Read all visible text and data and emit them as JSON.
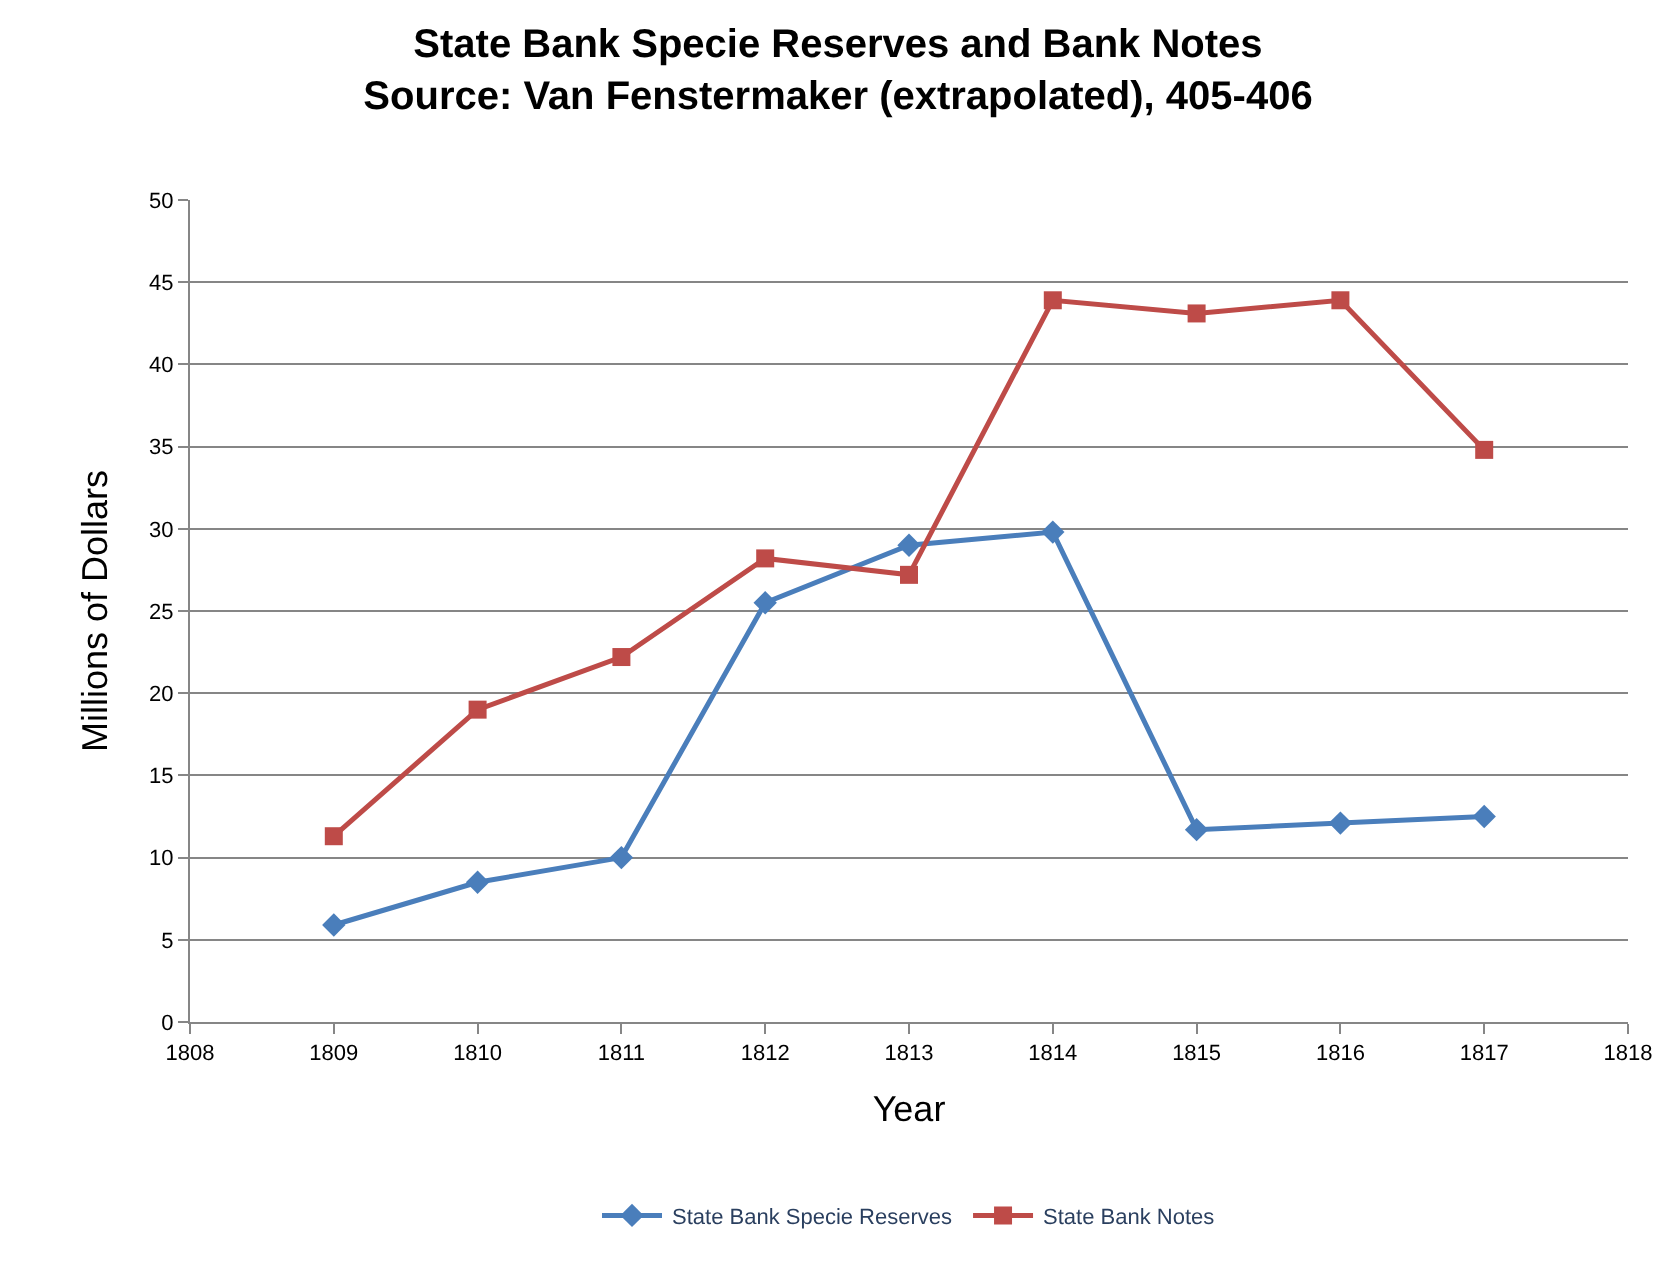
{
  "chart_data": {
    "type": "line",
    "title": "State Bank Specie Reserves and Bank Notes\nSource: Van Fenstermaker (extrapolated), 405-406",
    "xlabel": "Year",
    "ylabel": "Millions of Dollars",
    "x": [
      1809,
      1810,
      1811,
      1812,
      1813,
      1814,
      1815,
      1816,
      1817
    ],
    "series": [
      {
        "name": "State Bank Specie Reserves",
        "color": "#4a7ebb",
        "marker": "diamond",
        "values": [
          5.9,
          8.5,
          10,
          25.5,
          29,
          29.8,
          11.7,
          12.1,
          12.5
        ]
      },
      {
        "name": "State Bank Notes",
        "color": "#be4b48",
        "marker": "square",
        "values": [
          11.3,
          19,
          22.2,
          28.2,
          27.2,
          43.9,
          43.1,
          43.9,
          34.8
        ]
      }
    ],
    "xlim": [
      1808,
      1818
    ],
    "xticks": [
      1808,
      1809,
      1810,
      1811,
      1812,
      1813,
      1814,
      1815,
      1816,
      1817,
      1818
    ],
    "ylim": [
      0,
      50
    ],
    "yticks": [
      0,
      5,
      10,
      15,
      20,
      25,
      30,
      35,
      40,
      45,
      50
    ],
    "grid": "y",
    "legend": "bottom",
    "line_style": "solid"
  }
}
